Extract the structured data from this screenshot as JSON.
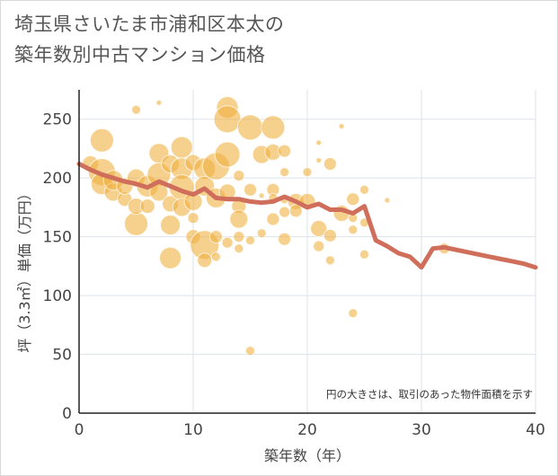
{
  "title_line1": "埼玉県さいたま市浦和区本太の",
  "title_line2": "築年数別中古マンション価格",
  "note": "円の大きさは、取引のあった物件面積を示す",
  "colors": {
    "bubble": "#f0b141",
    "line": "#cf6e5b",
    "grid": "#dde3ea",
    "axis": "#222222"
  },
  "chart_data": {
    "type": "scatter",
    "xlabel": "築年数（年）",
    "ylabel": "坪（3.3㎡）単価（万円）",
    "xlim": [
      0,
      40
    ],
    "ylim": [
      0,
      275
    ],
    "xticks": [
      "0",
      "10",
      "20",
      "30",
      "40"
    ],
    "yticks": [
      "0",
      "50",
      "100",
      "150",
      "200",
      "250"
    ],
    "grid": true,
    "bubbles": [
      {
        "x": 1,
        "y": 212,
        "s": 9
      },
      {
        "x": 2,
        "y": 232,
        "s": 13
      },
      {
        "x": 2,
        "y": 205,
        "s": 15
      },
      {
        "x": 2,
        "y": 195,
        "s": 12
      },
      {
        "x": 3,
        "y": 188,
        "s": 10
      },
      {
        "x": 3,
        "y": 198,
        "s": 11
      },
      {
        "x": 4,
        "y": 182,
        "s": 8
      },
      {
        "x": 4,
        "y": 193,
        "s": 9
      },
      {
        "x": 5,
        "y": 258,
        "s": 5
      },
      {
        "x": 5,
        "y": 200,
        "s": 10
      },
      {
        "x": 5,
        "y": 161,
        "s": 13
      },
      {
        "x": 5,
        "y": 176,
        "s": 9
      },
      {
        "x": 6,
        "y": 193,
        "s": 12
      },
      {
        "x": 6,
        "y": 176,
        "s": 8
      },
      {
        "x": 7,
        "y": 264,
        "s": 3
      },
      {
        "x": 7,
        "y": 221,
        "s": 11
      },
      {
        "x": 7,
        "y": 203,
        "s": 13
      },
      {
        "x": 7,
        "y": 188,
        "s": 10
      },
      {
        "x": 8,
        "y": 212,
        "s": 10
      },
      {
        "x": 8,
        "y": 178,
        "s": 9
      },
      {
        "x": 8,
        "y": 160,
        "s": 11
      },
      {
        "x": 8,
        "y": 132,
        "s": 12
      },
      {
        "x": 9,
        "y": 226,
        "s": 12
      },
      {
        "x": 9,
        "y": 208,
        "s": 12
      },
      {
        "x": 9,
        "y": 192,
        "s": 14
      },
      {
        "x": 9,
        "y": 175,
        "s": 10
      },
      {
        "x": 10,
        "y": 213,
        "s": 9
      },
      {
        "x": 10,
        "y": 180,
        "s": 10
      },
      {
        "x": 10,
        "y": 166,
        "s": 6
      },
      {
        "x": 10,
        "y": 150,
        "s": 8
      },
      {
        "x": 11,
        "y": 208,
        "s": 12
      },
      {
        "x": 11,
        "y": 193,
        "s": 11
      },
      {
        "x": 11,
        "y": 143,
        "s": 16
      },
      {
        "x": 11,
        "y": 130,
        "s": 8
      },
      {
        "x": 12,
        "y": 210,
        "s": 15
      },
      {
        "x": 12,
        "y": 183,
        "s": 11
      },
      {
        "x": 12,
        "y": 150,
        "s": 7
      },
      {
        "x": 12,
        "y": 133,
        "s": 5
      },
      {
        "x": 13,
        "y": 260,
        "s": 12
      },
      {
        "x": 13,
        "y": 250,
        "s": 15
      },
      {
        "x": 13,
        "y": 220,
        "s": 14
      },
      {
        "x": 13,
        "y": 188,
        "s": 9
      },
      {
        "x": 13,
        "y": 145,
        "s": 6
      },
      {
        "x": 14,
        "y": 202,
        "s": 6
      },
      {
        "x": 14,
        "y": 176,
        "s": 8
      },
      {
        "x": 14,
        "y": 165,
        "s": 10
      },
      {
        "x": 14,
        "y": 150,
        "s": 6
      },
      {
        "x": 14,
        "y": 140,
        "s": 5
      },
      {
        "x": 15,
        "y": 243,
        "s": 14
      },
      {
        "x": 15,
        "y": 190,
        "s": 7
      },
      {
        "x": 15,
        "y": 147,
        "s": 5
      },
      {
        "x": 15,
        "y": 53,
        "s": 5
      },
      {
        "x": 16,
        "y": 220,
        "s": 10
      },
      {
        "x": 16,
        "y": 185,
        "s": 3
      },
      {
        "x": 16,
        "y": 153,
        "s": 5
      },
      {
        "x": 17,
        "y": 243,
        "s": 13
      },
      {
        "x": 17,
        "y": 222,
        "s": 9
      },
      {
        "x": 17,
        "y": 190,
        "s": 7
      },
      {
        "x": 17,
        "y": 183,
        "s": 5
      },
      {
        "x": 17,
        "y": 165,
        "s": 7
      },
      {
        "x": 18,
        "y": 223,
        "s": 7
      },
      {
        "x": 18,
        "y": 205,
        "s": 5
      },
      {
        "x": 18,
        "y": 182,
        "s": 5
      },
      {
        "x": 18,
        "y": 171,
        "s": 6
      },
      {
        "x": 18,
        "y": 148,
        "s": 7
      },
      {
        "x": 19,
        "y": 180,
        "s": 9
      },
      {
        "x": 19,
        "y": 172,
        "s": 7
      },
      {
        "x": 20,
        "y": 205,
        "s": 5
      },
      {
        "x": 20,
        "y": 180,
        "s": 9
      },
      {
        "x": 21,
        "y": 230,
        "s": 3
      },
      {
        "x": 21,
        "y": 215,
        "s": 3
      },
      {
        "x": 21,
        "y": 157,
        "s": 9
      },
      {
        "x": 21,
        "y": 142,
        "s": 6
      },
      {
        "x": 22,
        "y": 212,
        "s": 7
      },
      {
        "x": 22,
        "y": 151,
        "s": 7
      },
      {
        "x": 22,
        "y": 130,
        "s": 5
      },
      {
        "x": 23,
        "y": 244,
        "s": 3
      },
      {
        "x": 23,
        "y": 170,
        "s": 9
      },
      {
        "x": 24,
        "y": 182,
        "s": 7
      },
      {
        "x": 24,
        "y": 166,
        "s": 5
      },
      {
        "x": 24,
        "y": 156,
        "s": 5
      },
      {
        "x": 24,
        "y": 85,
        "s": 5
      },
      {
        "x": 25,
        "y": 190,
        "s": 5
      },
      {
        "x": 25,
        "y": 162,
        "s": 5
      },
      {
        "x": 25,
        "y": 135,
        "s": 5
      },
      {
        "x": 27,
        "y": 181,
        "s": 3
      },
      {
        "x": 32,
        "y": 140,
        "s": 6
      }
    ],
    "series": [
      {
        "x": [
          0,
          1,
          2,
          3,
          4,
          5,
          6,
          7,
          8,
          9,
          10,
          11,
          12,
          13,
          14,
          15,
          16,
          17,
          18,
          19,
          20,
          21,
          22,
          23,
          24,
          25,
          26,
          27,
          28,
          29,
          30,
          31,
          32,
          33,
          34,
          35,
          36,
          37,
          38,
          39,
          40
        ],
        "y": [
          212,
          207,
          203,
          200,
          197,
          195,
          192,
          197,
          193,
          189,
          186,
          191,
          183,
          182,
          182,
          180,
          179,
          180,
          184,
          180,
          175,
          178,
          173,
          173,
          170,
          176,
          147,
          142,
          136,
          133,
          124,
          140,
          141,
          139,
          137,
          135,
          133,
          131,
          129,
          127,
          124
        ]
      }
    ]
  }
}
